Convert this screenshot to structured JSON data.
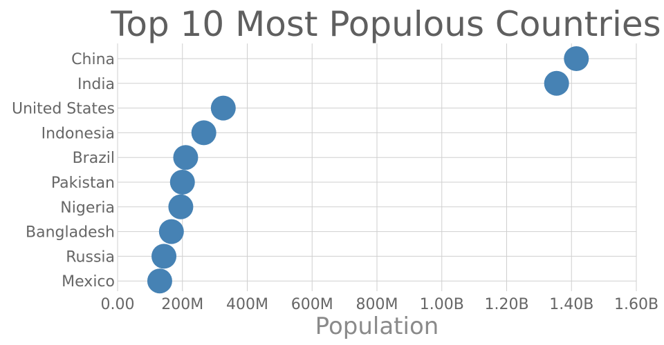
{
  "chart_data": {
    "type": "scatter",
    "title": "Top 10 Most Populous Countries",
    "xlabel": "Population",
    "ylabel": "",
    "xlim": [
      0,
      1600000000
    ],
    "x_ticks": [
      {
        "value": 0,
        "label": "0.00"
      },
      {
        "value": 200000000,
        "label": "200M"
      },
      {
        "value": 400000000,
        "label": "400M"
      },
      {
        "value": 600000000,
        "label": "600M"
      },
      {
        "value": 800000000,
        "label": "800M"
      },
      {
        "value": 1000000000,
        "label": "1.00B"
      },
      {
        "value": 1200000000,
        "label": "1.20B"
      },
      {
        "value": 1400000000,
        "label": "1.40B"
      },
      {
        "value": 1600000000,
        "label": "1.60B"
      }
    ],
    "categories": [
      "China",
      "India",
      "United States",
      "Indonesia",
      "Brazil",
      "Pakistan",
      "Nigeria",
      "Bangladesh",
      "Russia",
      "Mexico"
    ],
    "values": [
      1415000000,
      1354000000,
      326000000,
      266000000,
      210000000,
      200000000,
      195000000,
      166000000,
      143000000,
      130000000
    ],
    "grid": true,
    "color": "#4682b4"
  }
}
